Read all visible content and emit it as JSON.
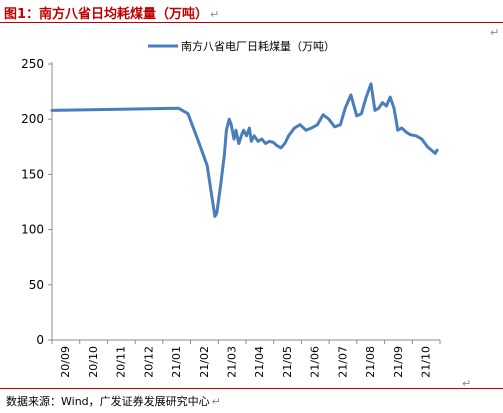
{
  "header": {
    "title": "图1：南方八省日均耗煤量（万吨）",
    "return_mark": "↵"
  },
  "footer": {
    "source": "数据来源：Wind，广发证券发展研究中心",
    "return_mark": "↵"
  },
  "chart_data": {
    "type": "line",
    "title": "",
    "xlabel": "",
    "ylabel": "",
    "ylim": [
      0,
      250
    ],
    "yticks": [
      0,
      50,
      100,
      150,
      200,
      250
    ],
    "grid": false,
    "legend": "top-center",
    "x_tick_labels": [
      "20/09",
      "20/10",
      "20/11",
      "20/12",
      "21/01",
      "21/02",
      "21/03",
      "21/04",
      "21/05",
      "21/06",
      "21/07",
      "21/08",
      "21/09",
      "21/10"
    ],
    "series": [
      {
        "name": "南方八省电厂日耗煤量（万吨）",
        "color": "#4a7ebb",
        "x": [
          "2020-09-01",
          "2021-01-11",
          "2021-01-21",
          "2021-01-31",
          "2021-02-05",
          "2021-02-10",
          "2021-02-14",
          "2021-02-18",
          "2021-02-20",
          "2021-02-24",
          "2021-02-28",
          "2021-03-02",
          "2021-03-05",
          "2021-03-07",
          "2021-03-10",
          "2021-03-12",
          "2021-03-15",
          "2021-03-18",
          "2021-03-20",
          "2021-03-23",
          "2021-03-26",
          "2021-03-28",
          "2021-03-31",
          "2021-04-04",
          "2021-04-08",
          "2021-04-12",
          "2021-04-16",
          "2021-04-20",
          "2021-04-24",
          "2021-04-28",
          "2021-05-02",
          "2021-05-06",
          "2021-05-12",
          "2021-05-18",
          "2021-05-24",
          "2021-05-30",
          "2021-06-05",
          "2021-06-11",
          "2021-06-17",
          "2021-06-23",
          "2021-06-29",
          "2021-07-04",
          "2021-07-10",
          "2021-07-16",
          "2021-07-21",
          "2021-07-26",
          "2021-07-31",
          "2021-08-04",
          "2021-08-08",
          "2021-08-12",
          "2021-08-16",
          "2021-08-20",
          "2021-08-24",
          "2021-08-28",
          "2021-09-01",
          "2021-09-06",
          "2021-09-10",
          "2021-09-16",
          "2021-09-22",
          "2021-09-28",
          "2021-10-02",
          "2021-10-06",
          "2021-10-08"
        ],
        "y": [
          208,
          210,
          205,
          182,
          170,
          158,
          135,
          112,
          115,
          140,
          168,
          190,
          200,
          195,
          182,
          190,
          178,
          186,
          190,
          185,
          192,
          180,
          185,
          180,
          182,
          178,
          180,
          179,
          176,
          174,
          178,
          185,
          192,
          195,
          190,
          192,
          195,
          204,
          200,
          193,
          195,
          210,
          222,
          203,
          205,
          220,
          232,
          208,
          210,
          215,
          212,
          220,
          210,
          190,
          192,
          188,
          186,
          185,
          182,
          175,
          172,
          169,
          172
        ]
      }
    ]
  }
}
